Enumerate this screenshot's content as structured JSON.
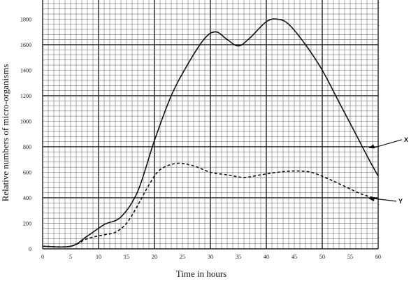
{
  "chart_data": {
    "type": "line",
    "xlabel": "Time in hours",
    "ylabel": "Relative numbers of micro-organisms",
    "xlim": [
      0,
      60
    ],
    "ylim": [
      0,
      1950
    ],
    "x_ticks": [
      0,
      5,
      10,
      15,
      20,
      25,
      30,
      35,
      40,
      45,
      50,
      55,
      60
    ],
    "y_ticks": [
      0,
      200,
      400,
      600,
      800,
      1000,
      1200,
      1400,
      1600,
      1800
    ],
    "grid": true,
    "series": [
      {
        "name": "X",
        "style": "solid",
        "color": "#111111",
        "x": [
          0,
          5,
          8,
          11,
          14,
          17,
          20,
          23,
          26,
          29,
          31,
          33,
          35,
          37,
          40,
          42,
          44,
          47,
          50,
          53,
          56,
          58,
          60
        ],
        "y": [
          20,
          20,
          100,
          190,
          250,
          450,
          850,
          1200,
          1450,
          1650,
          1700,
          1640,
          1590,
          1650,
          1780,
          1800,
          1760,
          1600,
          1400,
          1150,
          900,
          730,
          570
        ]
      },
      {
        "name": "Y",
        "style": "dashed",
        "color": "#111111",
        "x": [
          0,
          5,
          8,
          11,
          13,
          15,
          17,
          19,
          21,
          24,
          27,
          30,
          33,
          36,
          39,
          42,
          45,
          48,
          51,
          54,
          57,
          60
        ],
        "y": [
          20,
          20,
          80,
          110,
          130,
          200,
          340,
          500,
          620,
          670,
          650,
          600,
          580,
          560,
          580,
          600,
          610,
          600,
          550,
          490,
          430,
          390
        ]
      }
    ],
    "annotations": [
      {
        "label": "X",
        "target_series": "X",
        "x": 59,
        "y": 790
      },
      {
        "label": "Y",
        "target_series": "Y",
        "x": 59,
        "y": 395
      }
    ]
  }
}
